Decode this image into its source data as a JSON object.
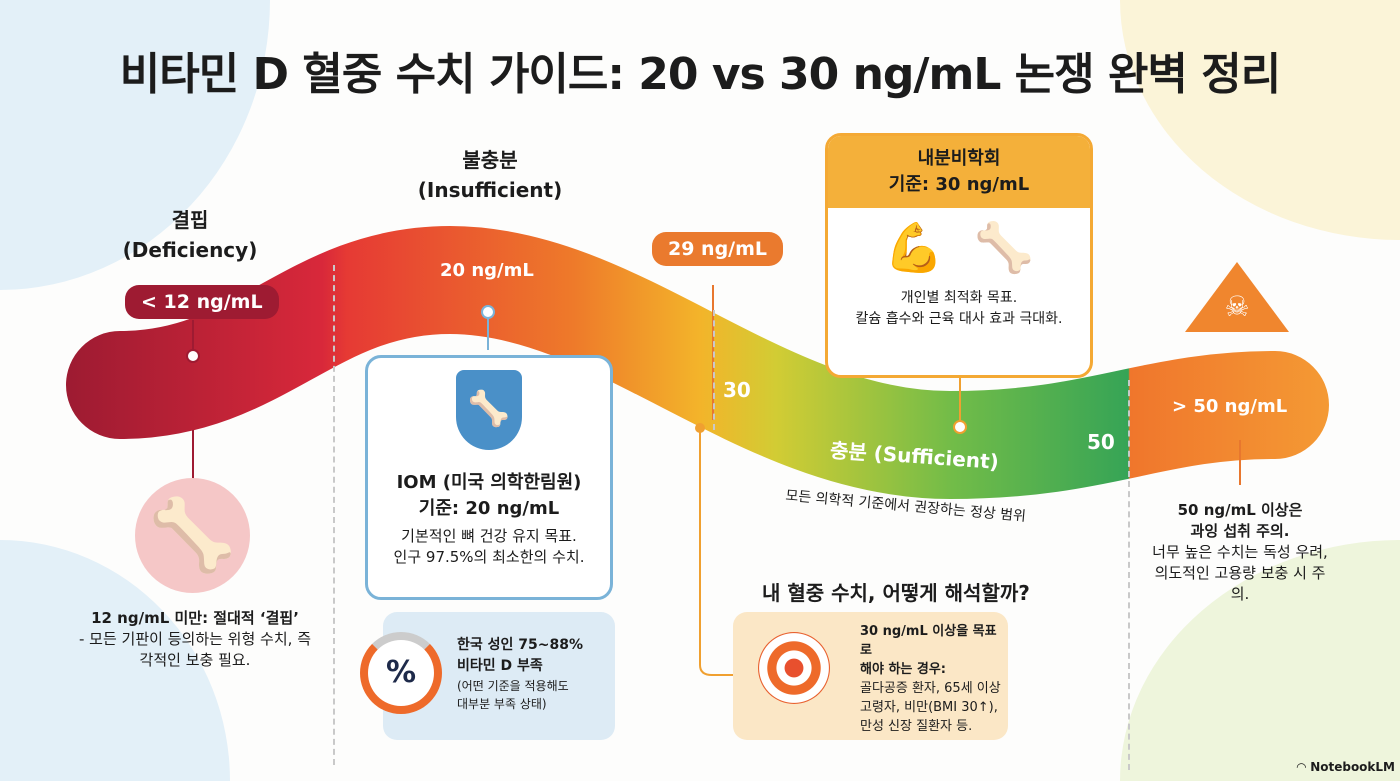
{
  "title": "비타민 D 혈중 수치 가이드: 20 vs 30 ng/mL 논쟁 완벽 정리",
  "zones": {
    "deficiency": {
      "label": "결핍",
      "sub": "(Deficiency)",
      "value": "< 12 ng/mL",
      "desc_title": "12 ng/mL 미만: 절대적 ‘결핍’",
      "desc": "- 모든 기판이 등의하는 위형 수치, 즉각적인 보충 필요."
    },
    "insufficient": {
      "label": "불충분",
      "sub": "(Insufficient)",
      "value": "20 ng/mL",
      "card_title": "IOM (미국 의학한림원)",
      "card_title2": "기준: 20 ng/mL",
      "card_desc": "기본적인 뼈 건강 유지 목표.",
      "card_desc2": "인구 97.5%의 최소한의 수치."
    },
    "marker29": "29 ng/mL",
    "marker30": "30",
    "marker50": "50",
    "sufficient": {
      "label": "충분 (Sufficient)",
      "desc": "모든 의학적 기준에서 권장하는 정상 범위"
    },
    "endocrine": {
      "title": "내분비학회",
      "title2": "기준: 30 ng/mL",
      "desc": "개인별 최적화 목표.",
      "desc2": "칼슘 흡수와 근육 대사 효과 극대화."
    },
    "excess": {
      "value": "> 50 ng/mL",
      "desc_title": "50 ng/mL 이상은",
      "desc_title2": "과잉 섭취 주의.",
      "desc": "너무 높은 수치는 독성 우려, 의도적인 고용량 보충 시 주의."
    }
  },
  "korea_stat": {
    "title": "한국 성인 75~88%",
    "title2": "비타민 D 부족",
    "desc": "(어떤 기준을 적용해도",
    "desc2": "대부분 부족 상태)",
    "percent_symbol": "%"
  },
  "interpret": {
    "heading": "내 혈중 수치, 어떻게 해석할까?",
    "title": "30 ng/mL 이상을 목표로",
    "title2": "해야 하는 경우:",
    "desc": "골다공증 환자, 65세 이상 고령자, 비만(BMI 30↑), 만성 신장 질환자 등."
  },
  "brand": "NotebookLM",
  "colors": {
    "deficiency": "#9e1b32",
    "orange": "#e8772e",
    "sufficient": "#3aa856",
    "blue": "#7ab3d8"
  }
}
